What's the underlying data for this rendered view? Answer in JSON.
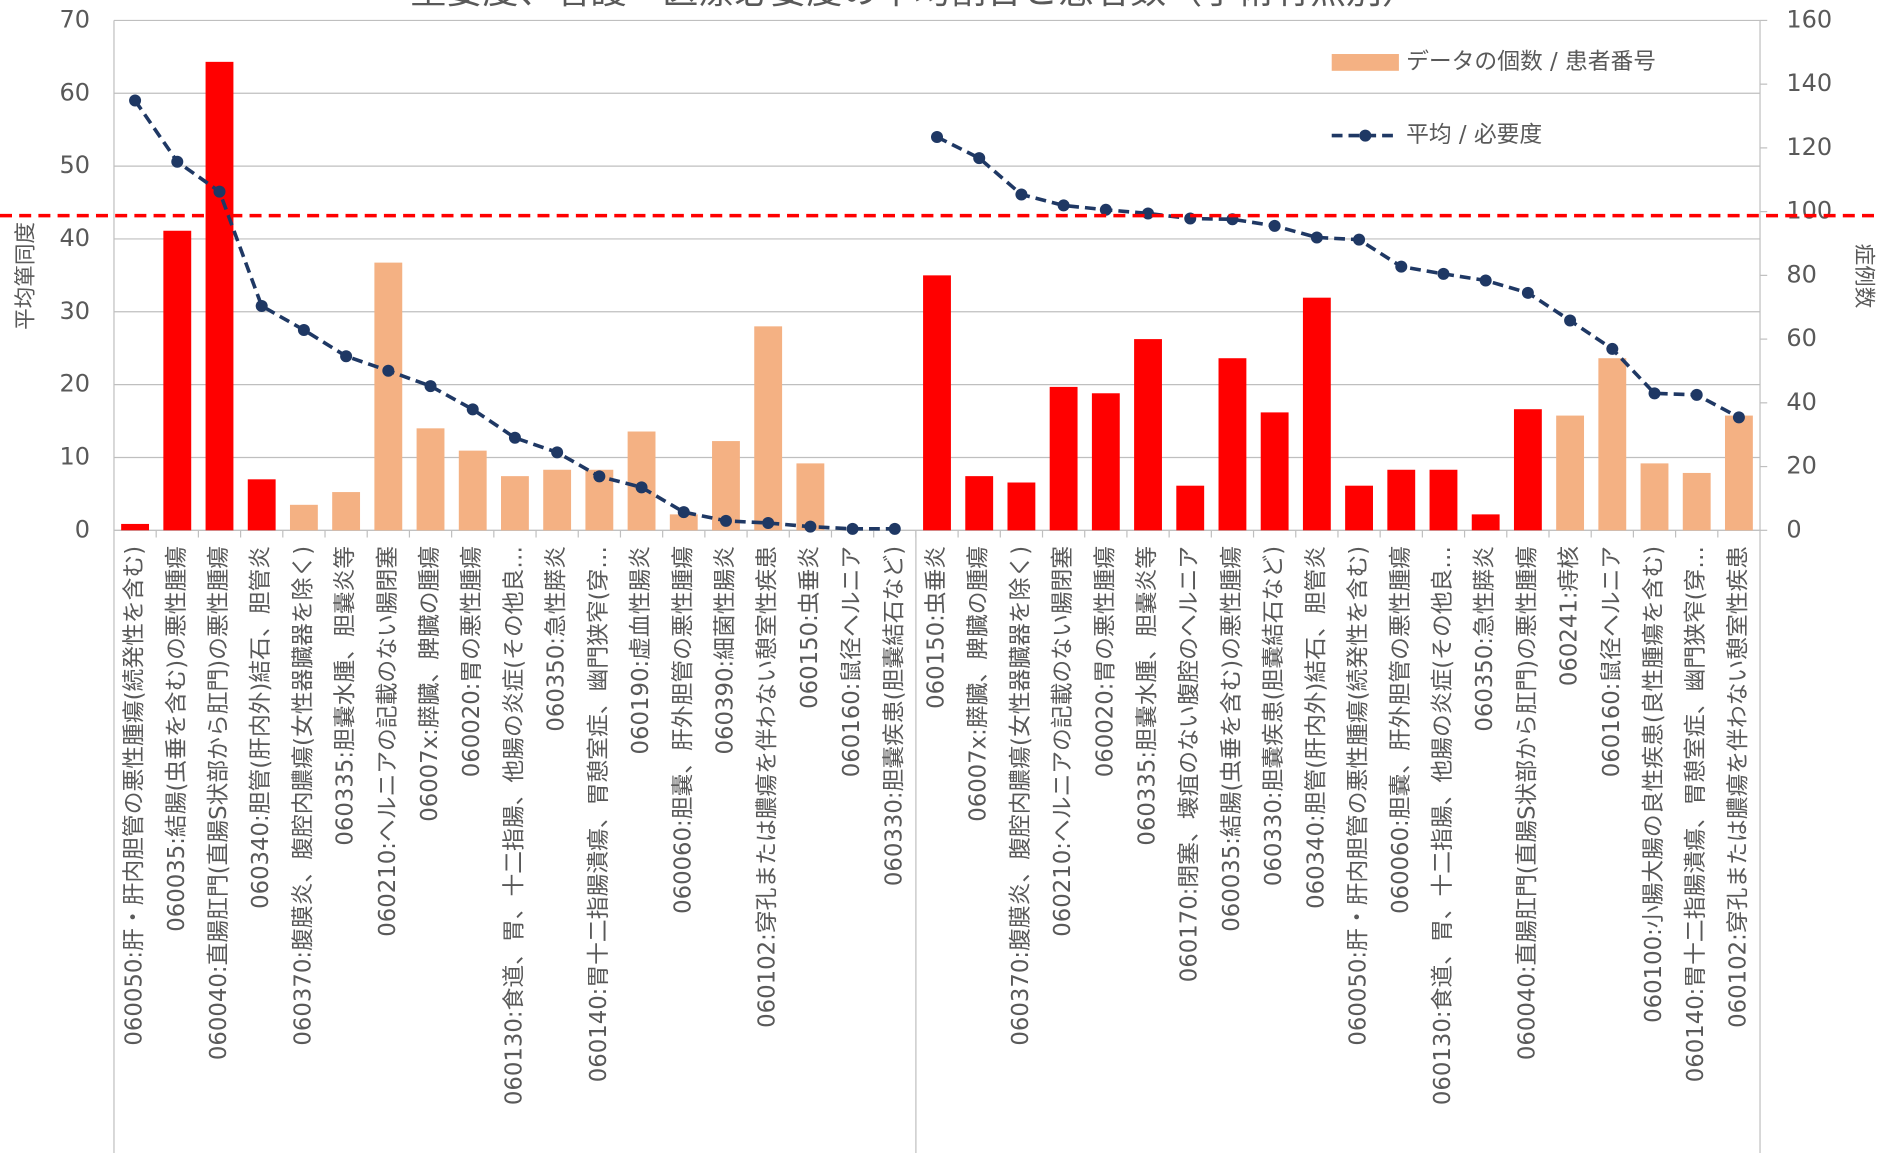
{
  "chart_data": {
    "type": "bar_line",
    "title": "重要度、看護・医療必要度の平均割合と患者数（手術有無別）",
    "y_label": "平均箪同度",
    "y2_label": "症例数",
    "categories": [
      "060050:肝・肝内胆管の悪性腫瘍(続発性を含む)",
      "060035:結腸(虫垂を含む)の悪性腫瘍",
      "060040:直腸肛門(直腸S状部から肛門)の悪性腫瘍",
      "060340:胆管(肝内外)結石、胆管炎",
      "060370:腹膜炎、腹腔内膿瘍(女性器臓器を除く)",
      "060335:胆嚢水腫、胆嚢炎等",
      "060210:ヘルニアの記載のない腸閉塞",
      "06007x:膵臓、脾臓の腫瘍",
      "060020:胃の悪性腫瘍",
      "060130:食道、胃、十二指腸、他腸の炎症(その他良…",
      "060350:急性膵炎",
      "060140:胃十二指腸潰瘍、胃憩室症、幽門狭窄(穿…",
      "060190:虚血性腸炎",
      "060060:胆嚢、肝外胆管の悪性腫瘍",
      "060390:細菌性腸炎",
      "060102:穿孔または膿瘍を伴わない憩室性疾患",
      "060150:虫垂炎",
      "060160:鼠径ヘルニア",
      "060330:胆嚢疾患(胆嚢結石など)",
      "060150:虫垂炎",
      "06007x:膵臓、脾臓の腫瘍",
      "060370:腹膜炎、腹腔内膿瘍(女性器臓器を除く)",
      "060210:ヘルニアの記載のない腸閉塞",
      "060020:胃の悪性腫瘍",
      "060335:胆嚢水腫、胆嚢炎等",
      "060170:閉塞、壊疽のない腹腔のヘルニア",
      "060035:結腸(虫垂を含む)の悪性腫瘍",
      "060330:胆嚢疾患(胆嚢結石など)",
      "060340:胆管(肝内外)結石、胆管炎",
      "060050:肝・肝内胆管の悪性腫瘍(続発性を含む)",
      "060060:胆嚢、肝外胆管の悪性腫瘍",
      "060130:食道、胃、十二指腸、他腸の炎症(その他良…",
      "060350:急性膵炎",
      "060040:直腸肛門(直腸S状部から肛門)の悪性腫瘍",
      "060241:痔核",
      "060160:鼠径ヘルニア",
      "060100:小腸大腸の良性疾患(良性腫瘍を含む)",
      "060140:胃十二指腸潰瘍、胃憩室症、幽門狭窄(穿…",
      "060102:穿孔または膿瘍を伴わない憩室性疾患"
    ],
    "group_boundaries": [
      19
    ],
    "series": [
      {
        "name": "データの個数 / 患者番号",
        "kind": "bar",
        "axis": "y2",
        "colors": [
          "#ff0000",
          "#ff0000",
          "#ff0000",
          "#ff0000",
          "#f4b183",
          "#f4b183",
          "#f4b183",
          "#f4b183",
          "#f4b183",
          "#f4b183",
          "#f4b183",
          "#f4b183",
          "#f4b183",
          "#f4b183",
          "#f4b183",
          "#f4b183",
          "#f4b183",
          "#f4b183",
          "#f4b183",
          "#ff0000",
          "#ff0000",
          "#ff0000",
          "#ff0000",
          "#ff0000",
          "#ff0000",
          "#ff0000",
          "#ff0000",
          "#ff0000",
          "#ff0000",
          "#ff0000",
          "#ff0000",
          "#ff0000",
          "#ff0000",
          "#ff0000",
          "#f4b183",
          "#f4b183",
          "#f4b183",
          "#f4b183",
          "#f4b183"
        ],
        "legend_color": "#f4b183",
        "values": [
          2,
          94,
          147,
          16,
          8,
          12,
          84,
          32,
          25,
          17,
          19,
          19,
          31,
          5,
          28,
          64,
          21,
          0,
          0,
          80,
          17,
          15,
          45,
          43,
          60,
          14,
          54,
          37,
          73,
          14,
          19,
          19,
          5,
          38,
          36,
          54,
          21,
          18,
          36
        ]
      },
      {
        "name": "平均 / 必要度",
        "kind": "line",
        "color": "#1f3864",
        "values": [
          59,
          50.6,
          46.5,
          30.8,
          27.5,
          23.9,
          21.9,
          19.8,
          16.6,
          12.7,
          10.7,
          7.4,
          5.9,
          2.5,
          1.3,
          1.0,
          0.5,
          0.2,
          0.2,
          null,
          null,
          null,
          null,
          null,
          null,
          null,
          null,
          null,
          null,
          null,
          null,
          null,
          null,
          null,
          null,
          null,
          null,
          null,
          null
        ]
      },
      {
        "kind": "line",
        "color": "#1f3864",
        "values": [
          null,
          null,
          null,
          null,
          null,
          null,
          null,
          null,
          null,
          null,
          null,
          null,
          null,
          null,
          null,
          null,
          null,
          null,
          null,
          54.0,
          51.1,
          46.1,
          44.6,
          44.0,
          43.5,
          42.8,
          42.7,
          41.8,
          40.2,
          39.9,
          36.2,
          35.2,
          34.3,
          32.6,
          28.8,
          24.9,
          18.8,
          18.6,
          15.5
        ]
      }
    ],
    "reference_line": {
      "value": 43.2,
      "color": "#ff0000"
    },
    "ylim": [
      0,
      70
    ],
    "yticks": [
      0,
      10,
      20,
      30,
      40,
      50,
      60,
      70
    ],
    "y2lim": [
      0,
      160
    ],
    "y2ticks": [
      0,
      20,
      40,
      60,
      80,
      100,
      120,
      140,
      160
    ],
    "grid": true,
    "legend": "top-right"
  }
}
